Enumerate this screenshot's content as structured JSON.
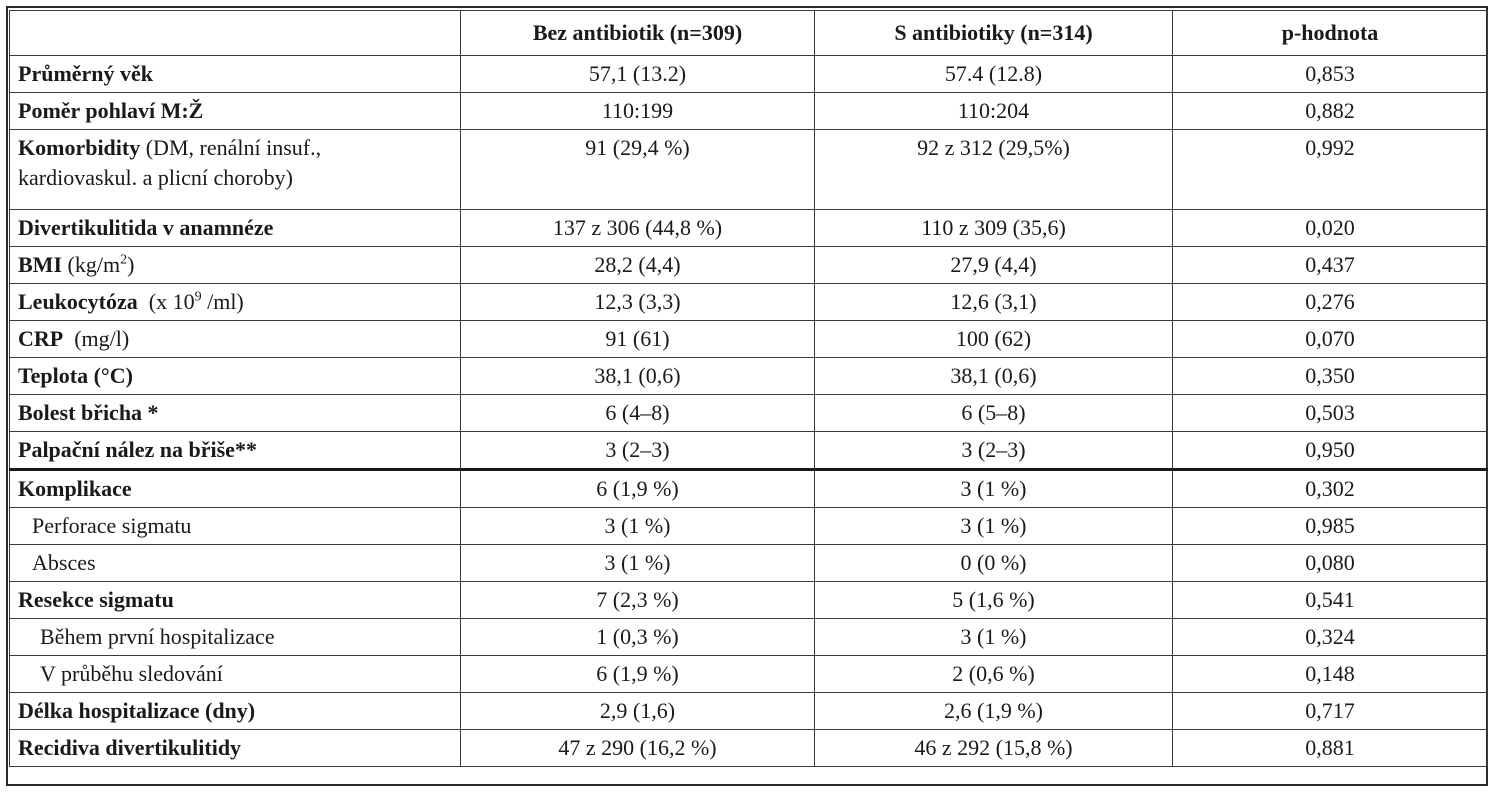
{
  "table": {
    "headers": [
      "",
      "Bez antibiotik (n=309)",
      "S antibiotiky (n=314)",
      "p-hodnota"
    ],
    "rows": [
      {
        "bold": "Průměrný věk",
        "rest": "",
        "sup": "",
        "after": "",
        "v1": "57,1 (13.2)",
        "v2": "57.4 (12.8)",
        "p": "0,853"
      },
      {
        "bold": "Poměr pohlaví M:Ž",
        "rest": "",
        "sup": "",
        "after": "",
        "v1": "110:199",
        "v2": "110:204",
        "p": "0,882"
      },
      {
        "bold": "Komorbidity",
        "rest": " (DM, renální insuf.,",
        "line2": "kardiovaskul. a plicní choroby)",
        "v1": "91 (29,4 %)",
        "v2": "92 z 312 (29,5%)",
        "p": "0,992"
      },
      {
        "bold": "Divertikulitida v anamnéze",
        "rest": "",
        "sup": "",
        "after": "",
        "v1": "137 z 306 (44,8 %)",
        "v2": "110 z 309 (35,6)",
        "p": "0,020"
      },
      {
        "bold": "BMI",
        "rest": " (kg/m",
        "sup": "2",
        "after": ")",
        "v1": "28,2 (4,4)",
        "v2": "27,9 (4,4)",
        "p": "0,437"
      },
      {
        "bold": "Leukocytóza",
        "rest": "  (x 10",
        "sup": "9",
        "after": " /ml)",
        "v1": "12,3 (3,3)",
        "v2": "12,6 (3,1)",
        "p": "0,276"
      },
      {
        "bold": "CRP",
        "rest": "  (mg/l)",
        "sup": "",
        "after": "",
        "v1": "91 (61)",
        "v2": "100 (62)",
        "p": "0,070"
      },
      {
        "bold": "Teplota (°C)",
        "rest": "",
        "sup": "",
        "after": "",
        "v1": "38,1 (0,6)",
        "v2": "38,1 (0,6)",
        "p": "0,350"
      },
      {
        "bold": "Bolest břicha *",
        "rest": "",
        "sup": "",
        "after": "",
        "v1": "6 (4–8)",
        "v2": "6 (5–8)",
        "p": "0,503"
      },
      {
        "bold": "Palpační nález na břiše**",
        "rest": "",
        "sup": "",
        "after": "",
        "v1": "3 (2–3)",
        "v2": "3 (2–3)",
        "p": "0,950"
      },
      {
        "bold": "Komplikace",
        "rest": "",
        "sup": "",
        "after": "",
        "v1": "6 (1,9 %)",
        "v2": "3 (1 %)",
        "p": "0,302"
      },
      {
        "plain": "Perforace sigmatu",
        "v1": "3 (1 %)",
        "v2": "3 (1 %)",
        "p": "0,985"
      },
      {
        "plain": "Absces",
        "v1": "3 (1 %)",
        "v2": "0 (0 %)",
        "p": "0,080"
      },
      {
        "bold": "Resekce sigmatu",
        "rest": "",
        "sup": "",
        "after": "",
        "v1": "7 (2,3 %)",
        "v2": "5 (1,6 %)",
        "p": "0,541"
      },
      {
        "plain": "Během první hospitalizace",
        "v1": "1 (0,3 %)",
        "v2": "3 (1 %)",
        "p": "0,324"
      },
      {
        "plain": "V průběhu sledování",
        "v1": "6 (1,9 %)",
        "v2": "2 (0,6 %)",
        "p": "0,148"
      },
      {
        "bold": "Délka hospitalizace (dny)",
        "rest": "",
        "sup": "",
        "after": "",
        "v1": "2,9 (1,6)",
        "v2": "2,6 (1,9 %)",
        "p": "0,717"
      },
      {
        "bold": "Recidiva divertikulitidy",
        "rest": "",
        "sup": "",
        "after": "",
        "v1": "47 z 290 (16,2 %)",
        "v2": "46 z 292 (15,8 %)",
        "p": "0,881"
      }
    ]
  }
}
